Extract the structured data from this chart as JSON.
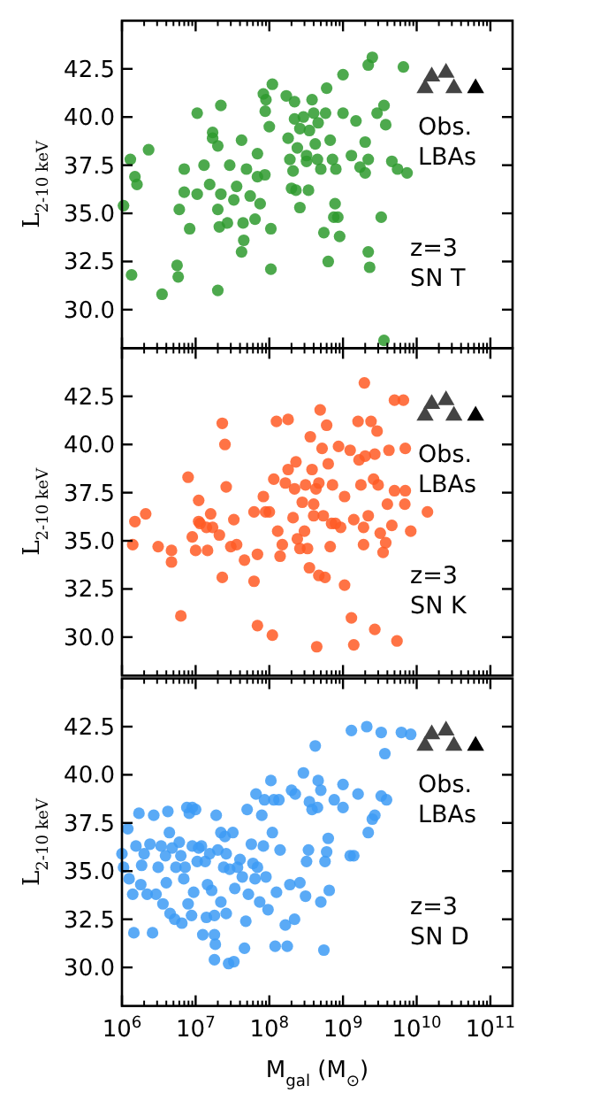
{
  "chart_data": [
    {
      "type": "scatter",
      "ylabel": "L$_{2-10 keV}$",
      "xlim": [
        1000000.0,
        200000000000.0
      ],
      "log": "x",
      "ylim": [
        28,
        45
      ],
      "yticks": [
        {
          "value": 30,
          "label": "30.0"
        },
        32.5,
        {
          "value": 35,
          "label": "35.0"
        },
        37.5,
        {
          "value": 40,
          "label": "40.0"
        },
        42.5
      ],
      "xticks": [
        {
          "value": 1000000.0,
          "label": null
        },
        {
          "value": 10000000.0,
          "label": null
        },
        {
          "value": 100000000.0,
          "label": null
        },
        {
          "value": 1000000000.0,
          "label": null
        },
        {
          "value": 10000000000.0,
          "label": null
        },
        {
          "value": 100000000000.0,
          "label": null
        }
      ],
      "tick_labels": "y",
      "grid": false,
      "legend": "right",
      "annotations": [
        "z=3",
        "SN T"
      ],
      "series": [
        {
          "color": "#2e9a2e",
          "marker": "circle",
          "x": [
            1300000.0,
            1350000.0,
            1050000.0,
            1500000.0,
            1600000.0,
            2300000.0,
            3500000.0,
            5600000.0,
            5800000.0,
            6000000.0,
            7000000.0,
            7000000.0,
            8300000.0,
            10500000.0,
            10500000.0,
            13000000.0,
            15500000.0,
            17000000.0,
            17000000.0,
            20000000.0,
            20000000.0,
            22000000.0,
            20000000.0,
            22000000.0,
            21000000.0,
            27000000.0,
            29000000.0,
            33000000.0,
            36000000.0,
            42000000.0,
            42000000.0,
            45000000.0,
            49000000.0,
            44000000.0,
            55000000.0,
            64000000.0,
            69000000.0,
            69000000.0,
            75000000.0,
            83000000.0,
            87000000.0,
            105000000.0,
            105000000.0,
            110000000.0,
            90000000.0,
            88000000.0,
            100000000.0,
            170000000.0,
            180000000.0,
            190000000.0,
            200000000.0,
            210000000.0,
            220000000.0,
            220000000.0,
            240000000.0,
            230000000.0,
            260000000.0,
            260000000.0,
            290000000.0,
            320000000.0,
            320000000.0,
            340000000.0,
            350000000.0,
            380000000.0,
            400000000.0,
            420000000.0,
            450000000.0,
            460000000.0,
            500000000.0,
            550000000.0,
            580000000.0,
            600000000.0,
            630000000.0,
            670000000.0,
            720000000.0,
            780000000.0,
            750000000.0,
            800000000.0,
            850000000.0,
            900000000.0,
            1000000000.0,
            1000000000.0,
            1300000000.0,
            1500000000.0,
            1700000000.0,
            2000000000.0,
            2000000000.0,
            2200000000.0,
            2200000000.0,
            2500000000.0,
            2200000000.0,
            2300000000.0,
            2900000000.0,
            3300000000.0,
            3600000000.0,
            3800000000.0,
            3600000000.0,
            4600000000.0,
            5500000000.0,
            6600000000.0,
            7400000000.0
          ],
          "values": [
            37.8,
            31.8,
            35.4,
            36.9,
            36.5,
            38.3,
            30.8,
            32.3,
            31.7,
            35.2,
            37.3,
            36.1,
            34.2,
            40.2,
            36.0,
            37.5,
            36.5,
            39.2,
            38.9,
            38.5,
            31.0,
            40.6,
            35.2,
            36.0,
            34.3,
            34.5,
            37.5,
            35.7,
            36.4,
            38.8,
            33.0,
            33.6,
            37.3,
            34.5,
            35.9,
            34.7,
            38.1,
            36.9,
            35.5,
            41.2,
            37.0,
            34.2,
            32.1,
            41.7,
            40.9,
            40.3,
            39.5,
            41.1,
            38.9,
            37.8,
            36.3,
            37.2,
            40.8,
            39.9,
            38.4,
            36.2,
            35.3,
            39.4,
            40.0,
            38.0,
            37.7,
            36.2,
            39.3,
            40.9,
            40.2,
            38.6,
            37.8,
            39.7,
            37.3,
            34.0,
            40.2,
            41.5,
            32.5,
            38.8,
            37.8,
            35.5,
            34.8,
            37.3,
            34.8,
            33.8,
            40.2,
            42.2,
            38.0,
            39.8,
            37.4,
            38.7,
            37.1,
            37.8,
            42.7,
            43.1,
            33.0,
            32.2,
            40.2,
            34.8,
            40.6,
            39.6,
            28.4,
            37.7,
            37.3,
            42.6,
            37.1
          ]
        },
        {
          "name": "Obs. LBAs",
          "marker": "triangle",
          "colors": [
            "#444444",
            "#444444",
            "#444444",
            "#444444",
            "#000000"
          ],
          "x": [
            13000000000.0,
            16000000000.0,
            25000000000.0,
            32000000000.0,
            63000000000.0
          ],
          "values": [
            41.5,
            42.1,
            42.3,
            41.5,
            41.5
          ]
        }
      ]
    },
    {
      "type": "scatter",
      "ylabel": "L$_{2-10 keV}$",
      "xlim": [
        1000000.0,
        200000000000.0
      ],
      "log": "x",
      "ylim": [
        28,
        45
      ],
      "yticks": [
        {
          "value": 30,
          "label": "30.0"
        },
        32.5,
        {
          "value": 35,
          "label": "35.0"
        },
        37.5,
        {
          "value": 40,
          "label": "40.0"
        },
        42.5
      ],
      "xticks": [
        {
          "value": 1000000.0,
          "label": null
        },
        {
          "value": 10000000.0,
          "label": null
        },
        {
          "value": 100000000.0,
          "label": null
        },
        {
          "value": 1000000000.0,
          "label": null
        },
        {
          "value": 10000000000.0,
          "label": null
        },
        {
          "value": 100000000000.0,
          "label": null
        }
      ],
      "tick_labels": "y",
      "grid": false,
      "legend": "right",
      "annotations": [
        "z=3",
        "SN K"
      ],
      "series": [
        {
          "color": "#ff5b24",
          "marker": "circle",
          "x": [
            1500000.0,
            1400000.0,
            2100000.0,
            3100000.0,
            4700000.0,
            4700000.0,
            6300000.0,
            7900000.0,
            9000000.0,
            10000000.0,
            11000000.0,
            11000000.0,
            11500000.0,
            14000000.0,
            14500000.0,
            16000000.0,
            17000000.0,
            21000000.0,
            23000000.0,
            23000000.0,
            25000000.0,
            26000000.0,
            30000000.0,
            33000000.0,
            36000000.0,
            46000000.0,
            62000000.0,
            62000000.0,
            69000000.0,
            69000000.0,
            83000000.0,
            89000000.0,
            100000000.0,
            110000000.0,
            115000000.0,
            125000000.0,
            130000000.0,
            140000000.0,
            150000000.0,
            165000000.0,
            180000000.0,
            180000000.0,
            210000000.0,
            220000000.0,
            230000000.0,
            240000000.0,
            260000000.0,
            280000000.0,
            300000000.0,
            310000000.0,
            330000000.0,
            350000000.0,
            360000000.0,
            380000000.0,
            400000000.0,
            400000000.0,
            430000000.0,
            440000000.0,
            470000000.0,
            470000000.0,
            490000000.0,
            520000000.0,
            540000000.0,
            570000000.0,
            600000000.0,
            630000000.0,
            670000000.0,
            700000000.0,
            720000000.0,
            790000000.0,
            870000000.0,
            930000000.0,
            1050000000.0,
            1050000000.0,
            1250000000.0,
            1300000000.0,
            1400000000.0,
            1400000000.0,
            1600000000.0,
            1650000000.0,
            1750000000.0,
            1900000000.0,
            1900000000.0,
            1950000000.0,
            2000000000.0,
            2200000000.0,
            2400000000.0,
            2600000000.0,
            2700000000.0,
            2700000000.0,
            2900000000.0,
            3000000000.0,
            3200000000.0,
            3500000000.0,
            3800000000.0,
            4000000000.0,
            4200000000.0,
            4600000000.0,
            5000000000.0,
            5000000000.0,
            5400000000.0,
            6600000000.0,
            6900000000.0,
            7000000000.0,
            7000000000.0,
            8300000000.0,
            14000000000.0
          ],
          "values": [
            36.0,
            34.8,
            36.4,
            34.7,
            34.5,
            33.9,
            31.1,
            38.3,
            35.2,
            34.5,
            37.1,
            36.0,
            35.9,
            35.7,
            34.5,
            36.4,
            35.7,
            35.3,
            33.1,
            41.1,
            40.0,
            37.8,
            34.7,
            36.1,
            34.8,
            34.0,
            36.5,
            32.9,
            34.3,
            30.6,
            37.3,
            36.5,
            36.5,
            30.1,
            38.2,
            41.2,
            35.5,
            34.2,
            34.8,
            38.0,
            41.3,
            38.7,
            36.2,
            37.7,
            39.1,
            35.1,
            34.6,
            37.0,
            35.5,
            37.9,
            34.6,
            33.6,
            40.4,
            38.7,
            36.9,
            36.3,
            37.7,
            29.5,
            38.0,
            33.2,
            41.8,
            39.8,
            36.3,
            33.1,
            41.0,
            39.0,
            34.7,
            35.9,
            37.9,
            35.9,
            39.9,
            35.7,
            32.7,
            37.3,
            39.7,
            31.0,
            29.6,
            36.1,
            41.2,
            39.2,
            37.9,
            35.7,
            34.8,
            43.2,
            39.4,
            36.3,
            41.2,
            38.2,
            39.5,
            30.4,
            40.7,
            37.9,
            35.4,
            34.4,
            34.9,
            36.9,
            39.7,
            35.8,
            37.6,
            42.3,
            29.8,
            42.3,
            36.9,
            39.8,
            37.6,
            35.5,
            36.5
          ]
        },
        {
          "name": "Obs. LBAs",
          "marker": "triangle",
          "colors": [
            "#444444",
            "#444444",
            "#444444",
            "#444444",
            "#000000"
          ],
          "x": [
            13000000000.0,
            16000000000.0,
            25000000000.0,
            32000000000.0,
            63000000000.0
          ],
          "values": [
            41.5,
            42.1,
            42.3,
            41.5,
            41.5
          ]
        }
      ]
    },
    {
      "type": "scatter",
      "ylabel": "L$_{2-10 keV}$",
      "xlabel": "M$_{gal}$ (M$_{⊙}$)",
      "xlim": [
        1000000.0,
        200000000000.0
      ],
      "log": "x",
      "ylim": [
        28,
        45
      ],
      "yticks": [
        {
          "value": 30,
          "label": "30.0"
        },
        32.5,
        {
          "value": 35,
          "label": "35.0"
        },
        37.5,
        {
          "value": 40,
          "label": "40.0"
        },
        42.5
      ],
      "xticks": [
        {
          "value": 1000000.0,
          "label": "10$^{6}$"
        },
        {
          "value": 10000000.0,
          "label": "10$^{7}$"
        },
        {
          "value": 100000000.0,
          "label": "10$^{8}$"
        },
        {
          "value": 1000000000.0,
          "label": "10$^{9}$"
        },
        {
          "value": 10000000000.0,
          "label": "10$^{10}$"
        },
        {
          "value": 100000000000.0,
          "label": "10$^{11}$"
        }
      ],
      "grid": false,
      "legend": "right",
      "annotations": [
        "z=3",
        "SN D"
      ],
      "series": [
        {
          "color": "#3d9bf5",
          "marker": "circle",
          "x": [
            1000000.0,
            1050000.0,
            1200000.0,
            1250000.0,
            1450000.0,
            1400000.0,
            1550000.0,
            1700000.0,
            1800000.0,
            1850000.0,
            2000000.0,
            2200000.0,
            2400000.0,
            2600000.0,
            2700000.0,
            2900000.0,
            3100000.0,
            3400000.0,
            3600000.0,
            3900000.0,
            4000000.0,
            4200000.0,
            4400000.0,
            4500000.0,
            4800000.0,
            5200000.0,
            5400000.0,
            6000000.0,
            6300000.0,
            6500000.0,
            6900000.0,
            7200000.0,
            7600000.0,
            7900000.0,
            8200000.0,
            8800000.0,
            9000000.0,
            9400000.0,
            9000000.0,
            10000000.0,
            10500000.0,
            11000000.0,
            12000000.0,
            12500000.0,
            13500000.0,
            14000000.0,
            14500000.0,
            15500000.0,
            16500000.0,
            18000000.0,
            18000000.0,
            18500000.0,
            18000000.0,
            19000000.0,
            20000000.0,
            22000000.0,
            22000000.0,
            24000000.0,
            25000000.0,
            26000000.0,
            26000000.0,
            28000000.0,
            29000000.0,
            32000000.0,
            33000000.0,
            34000000.0,
            37000000.0,
            40000000.0,
            43000000.0,
            46000000.0,
            48000000.0,
            50000000.0,
            52000000.0,
            57000000.0,
            60000000.0,
            64000000.0,
            66000000.0,
            69000000.0,
            74000000.0,
            79000000.0,
            83000000.0,
            86000000.0,
            90000000.0,
            96000000.0,
            105000000.0,
            110000000.0,
            115000000.0,
            120000000.0,
            125000000.0,
            135000000.0,
            140000000.0,
            165000000.0,
            175000000.0,
            190000000.0,
            200000000.0,
            220000000.0,
            225000000.0,
            260000000.0,
            290000000.0,
            310000000.0,
            320000000.0,
            340000000.0,
            350000000.0,
            380000000.0,
            420000000.0,
            450000000.0,
            460000000.0,
            500000000.0,
            500000000.0,
            550000000.0,
            570000000.0,
            600000000.0,
            630000000.0,
            650000000.0,
            760000000.0,
            1000000000.0,
            1000000000.0,
            1250000000.0,
            1300000000.0,
            1400000000.0,
            1600000000.0,
            2100000000.0,
            2200000000.0,
            2500000000.0,
            2700000000.0,
            3300000000.0,
            3300000000.0,
            3700000000.0,
            3900000000.0,
            6200000000.0,
            8300000000.0
          ],
          "values": [
            35.9,
            35.2,
            37.2,
            34.6,
            31.8,
            33.8,
            36.3,
            38.0,
            34.3,
            35.3,
            35.9,
            33.8,
            36.4,
            31.8,
            37.9,
            33.8,
            35.2,
            36.3,
            33.3,
            35.8,
            34.4,
            38.1,
            37.0,
            32.8,
            36.2,
            32.5,
            35.2,
            36.5,
            35.8,
            32.3,
            34.6,
            35.2,
            38.3,
            33.3,
            38.0,
            32.7,
            36.3,
            33.9,
            38.3,
            38.2,
            35.5,
            36.2,
            36.3,
            31.7,
            35.5,
            32.6,
            34.3,
            35.9,
            34.0,
            31.7,
            32.7,
            31.2,
            30.4,
            37.9,
            36.1,
            37.0,
            33.4,
            35.2,
            36.8,
            35.9,
            32.8,
            30.2,
            35.1,
            37.0,
            30.3,
            34.1,
            35.2,
            35.6,
            34.7,
            31.0,
            32.4,
            38.2,
            33.8,
            36.4,
            35.4,
            34.6,
            39.0,
            35.2,
            33.4,
            37.9,
            36.3,
            38.7,
            34.7,
            33.0,
            39.7,
            37.0,
            38.7,
            31.1,
            33.9,
            38.7,
            36.1,
            32.2,
            31.1,
            34.3,
            39.2,
            32.5,
            39.0,
            34.4,
            40.1,
            33.7,
            35.5,
            36.1,
            38.6,
            38.2,
            41.5,
            38.3,
            39.7,
            33.4,
            39.2,
            30.9,
            35.5,
            36.0,
            36.7,
            34.0,
            38.7,
            39.5,
            38.3,
            35.8,
            42.3,
            35.8,
            39.0,
            42.5,
            37.0,
            37.7,
            37.9,
            42.2,
            38.9,
            41.1,
            38.7,
            42.2,
            42.1
          ]
        },
        {
          "name": "Obs. LBAs",
          "marker": "triangle",
          "colors": [
            "#444444",
            "#444444",
            "#444444",
            "#444444",
            "#000000"
          ],
          "x": [
            13000000000.0,
            16000000000.0,
            25000000000.0,
            32000000000.0,
            63000000000.0
          ],
          "values": [
            41.5,
            42.1,
            42.3,
            41.5,
            41.5
          ]
        }
      ]
    }
  ]
}
